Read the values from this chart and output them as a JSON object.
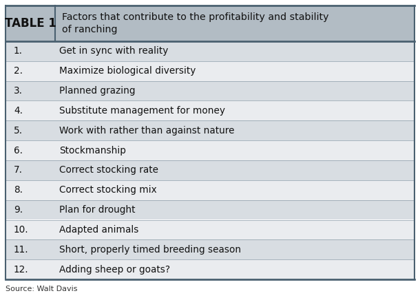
{
  "title_label": "TABLE 1",
  "title_text": "Factors that contribute to the profitability and stability\nof ranching",
  "rows": [
    [
      "1.",
      "Get in sync with reality"
    ],
    [
      "2.",
      "Maximize biological diversity"
    ],
    [
      "3.",
      "Planned grazing"
    ],
    [
      "4.",
      "Substitute management for money"
    ],
    [
      "5.",
      "Work with rather than against nature"
    ],
    [
      "6.",
      "Stockmanship"
    ],
    [
      "7.",
      "Correct stocking rate"
    ],
    [
      "8.",
      "Correct stocking mix"
    ],
    [
      "9.",
      "Plan for drought"
    ],
    [
      "10.",
      "Adapted animals"
    ],
    [
      "11.",
      "Short, properly timed breeding season"
    ],
    [
      "12.",
      "Adding sheep or goats?"
    ]
  ],
  "source_text": "Source: Walt Davis",
  "header_bg": "#b2bcc4",
  "row_bg_odd": "#d8dde2",
  "row_bg_even": "#eaecef",
  "border_color_dark": "#4a6070",
  "border_color_light": "#8899a6",
  "text_color": "#111111",
  "source_color": "#333333",
  "header_label_fontsize": 12,
  "header_title_fontsize": 10.2,
  "row_fontsize": 9.8,
  "source_fontsize": 8.0,
  "fig_width": 6.1,
  "fig_height": 4.36,
  "dpi": 100
}
